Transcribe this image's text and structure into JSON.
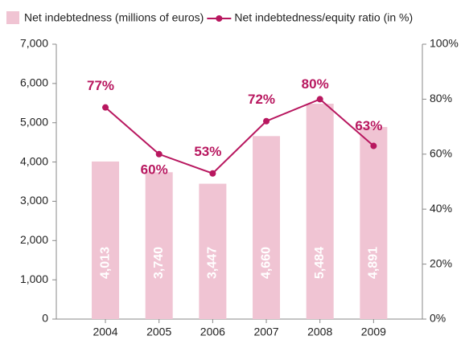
{
  "chart_data": {
    "type": "bar-line",
    "categories": [
      "2004",
      "2005",
      "2006",
      "2007",
      "2008",
      "2009"
    ],
    "series": [
      {
        "name": "Net indebtedness (millions of euros)",
        "color": "#f0c4d3",
        "type": "bar",
        "values": [
          4013,
          3740,
          3447,
          4660,
          5484,
          4891
        ],
        "value_labels": [
          "4,013",
          "3,740",
          "3,447",
          "4,660",
          "5,484",
          "4,891"
        ]
      },
      {
        "name": "Net indebtedness/equity ratio (in %)",
        "color": "#b8175f",
        "type": "line",
        "axis": "y2",
        "values": [
          77,
          60,
          53,
          72,
          80,
          63
        ],
        "value_labels": [
          "77%",
          "60%",
          "53%",
          "72%",
          "80%",
          "63%"
        ]
      }
    ],
    "ylim": [
      0,
      7000
    ],
    "yticks": [
      0,
      {
        "value": 1000,
        "label": "1,000"
      },
      {
        "value": 2000,
        "label": "2,000"
      },
      {
        "value": 3000,
        "label": "3,000"
      },
      {
        "value": 4000,
        "label": "4,000"
      },
      {
        "value": 5000,
        "label": "5,000"
      },
      {
        "value": 6000,
        "label": "6,000"
      },
      {
        "value": 7000,
        "label": "7,000"
      }
    ],
    "y2lim": [
      0,
      100
    ],
    "y2ticks": [
      {
        "value": 0,
        "label": "0%"
      },
      {
        "value": 20,
        "label": "20%"
      },
      {
        "value": 40,
        "label": "40%"
      },
      {
        "value": 60,
        "label": "60%"
      },
      {
        "value": 80,
        "label": "80%"
      },
      {
        "value": 100,
        "label": "100%"
      }
    ],
    "grid": false
  }
}
